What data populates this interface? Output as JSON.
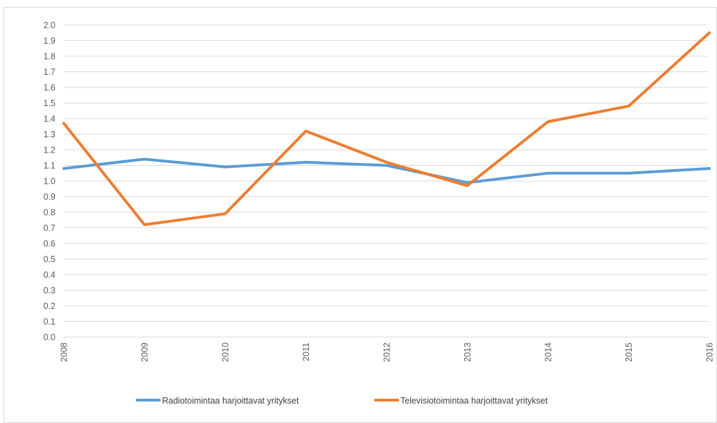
{
  "chart_data": {
    "type": "line",
    "title": "",
    "xlabel": "",
    "ylabel": "",
    "x": [
      "2008",
      "2009",
      "2010",
      "2011",
      "2012",
      "2013",
      "2014",
      "2015",
      "2016"
    ],
    "ylim": [
      0,
      2.0
    ],
    "yticks": [
      "0.0",
      "0.1",
      "0.2",
      "0.3",
      "0.4",
      "0.5",
      "0.6",
      "0.7",
      "0.8",
      "0.9",
      "1.0",
      "1.1",
      "1.2",
      "1.3",
      "1.4",
      "1.5",
      "1.6",
      "1.7",
      "1.8",
      "1.9",
      "2.0"
    ],
    "grid": true,
    "legend_position": "bottom",
    "series": [
      {
        "name": "Radiotoimintaa harjoittavat yritykset",
        "color": "#5b9bd5",
        "values": [
          1.08,
          1.14,
          1.09,
          1.12,
          1.1,
          0.99,
          1.05,
          1.05,
          1.08
        ]
      },
      {
        "name": "Televisiotoimintaa harjoittavat yritykset",
        "color": "#ed7d31",
        "values": [
          1.37,
          0.72,
          0.79,
          1.32,
          1.12,
          0.97,
          1.38,
          1.48,
          1.95
        ]
      }
    ]
  }
}
